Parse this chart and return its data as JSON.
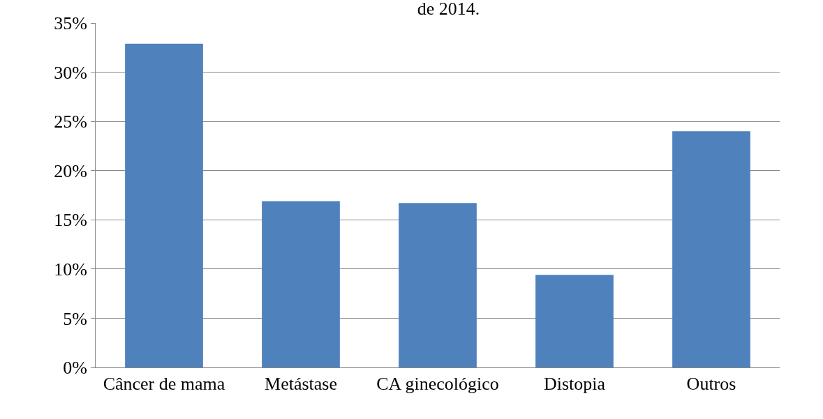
{
  "chart_data": {
    "type": "bar",
    "title": "de 2014.",
    "categories": [
      "Câncer de mama",
      "Metástase",
      "CA ginecológico",
      "Distopia",
      "Outros"
    ],
    "values": [
      32.9,
      16.9,
      16.7,
      9.4,
      24.0
    ],
    "color": "#4f81bd",
    "ylim": [
      0,
      35
    ],
    "yticks": [
      {
        "value": 0,
        "label": "0%"
      },
      {
        "value": 5,
        "label": "5%"
      },
      {
        "value": 10,
        "label": "10%"
      },
      {
        "value": 15,
        "label": "15%"
      },
      {
        "value": 20,
        "label": "20%"
      },
      {
        "value": 25,
        "label": "25%"
      },
      {
        "value": 30,
        "label": "30%"
      },
      {
        "value": 35,
        "label": "35%"
      }
    ],
    "grid": "y"
  }
}
